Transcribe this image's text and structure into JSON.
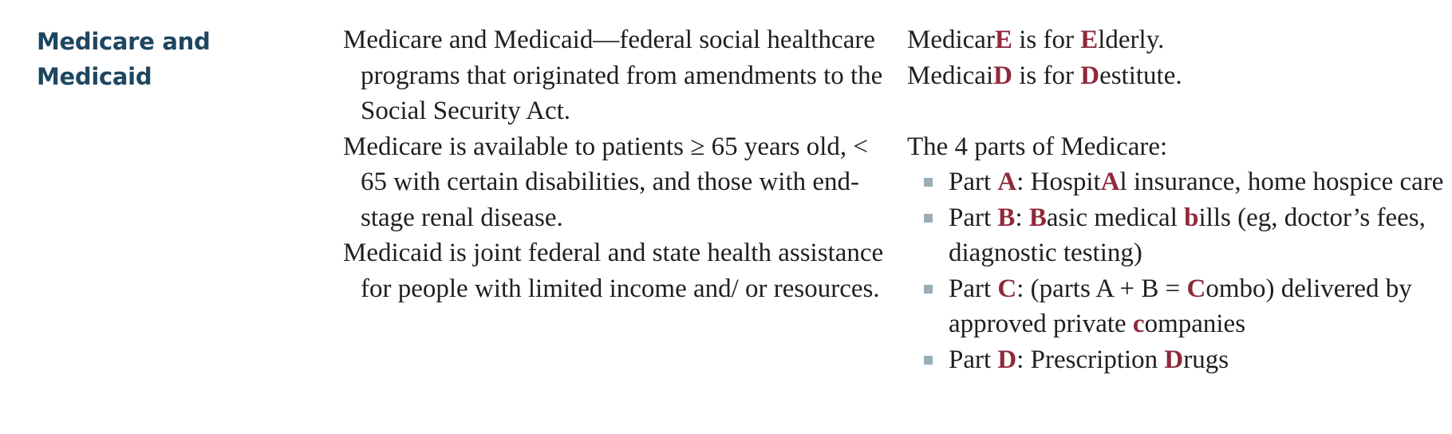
{
  "heading": {
    "line1": "Medicare and",
    "line2": "Medicaid"
  },
  "definitions": [
    "Medicare and Medicaid—federal social healthcare programs that originated from amendments to the Social Security Act.",
    "Medicare is available to patients ≥ 65 years old, < 65 with certain disabilities, and those with end-stage renal disease.",
    "Medicaid is joint federal and state health assistance for people with limited income and/ or resources."
  ],
  "mnemonics": {
    "medicare": [
      "Medicar",
      "E",
      " is for ",
      "E",
      "lderly."
    ],
    "medicaid": [
      "Medicai",
      "D",
      " is for ",
      "D",
      "estitute."
    ]
  },
  "parts_title": "The 4 parts of Medicare:",
  "parts": [
    [
      "Part ",
      "A",
      ": Hospit",
      "A",
      "l insurance, home hospice care"
    ],
    [
      "Part ",
      "B",
      ": ",
      "B",
      "asic medical ",
      "b",
      "ills (eg, doctor’s fees, diagnostic testing)"
    ],
    [
      "Part ",
      "C",
      ": (parts A + B = ",
      "C",
      "ombo) delivered by approved private ",
      "c",
      "ompanies"
    ],
    [
      "Part ",
      "D",
      ": Prescription ",
      "D",
      "rugs"
    ]
  ],
  "colors": {
    "heading": "#1e4660",
    "highlight": "#8e2a3b",
    "bullet": "#9aaeb9",
    "text": "#1f1f1f"
  },
  "icons": {
    "bullet": "square-bullet-icon"
  }
}
